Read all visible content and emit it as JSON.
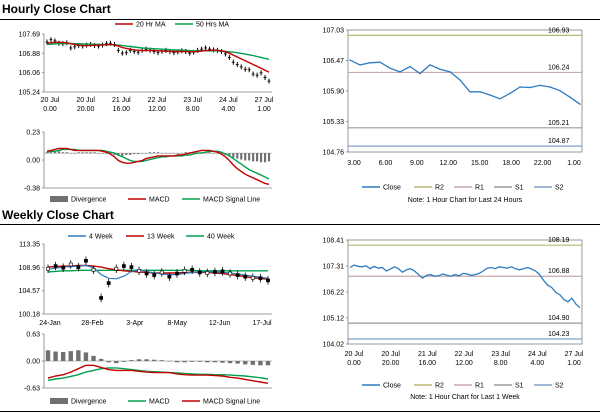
{
  "sections": {
    "hourly_title": "Hourly Close Chart",
    "weekly_title": "Weekly Close Chart"
  },
  "colors": {
    "price": "#000000",
    "ma_short": "#c00000",
    "ma_long": "#00a050",
    "divergence": "#707070",
    "macd": "#c00000",
    "signal": "#00a050",
    "close_line": "#2e7bbf",
    "r2": "#b8b872",
    "r1": "#c9a9a9",
    "s1": "#9a9a9a",
    "s2": "#80a0c8",
    "axis": "#808080"
  },
  "chart_data": [
    {
      "id": "hourly_price",
      "type": "line",
      "title": "",
      "legend": [
        "20 Hr MA",
        "50 Hrs MA"
      ],
      "legend_position": "top",
      "yticks": [
        "107.69",
        "106.88",
        "106.06",
        "105.24"
      ],
      "ylim": [
        105.24,
        107.69
      ],
      "xticks": [
        "20 Jul\n0.00",
        "20 Jul\n20.00",
        "21 Jul\n16.00",
        "22 Jul\n12.00",
        "23 Jul\n8.00",
        "24 Jul\n4.00",
        "27 Jul\n1.00"
      ],
      "series": [
        {
          "name": "Price",
          "values": [
            107.35,
            107.45,
            107.4,
            107.3,
            107.28,
            107.32,
            107.1,
            107.15,
            107.2,
            107.18,
            107.22,
            107.25,
            107.2,
            107.18,
            107.22,
            107.28,
            107.3,
            107.25,
            107.0,
            106.88,
            106.9,
            107.0,
            106.95,
            106.92,
            107.0,
            107.05,
            107.0,
            106.95,
            106.9,
            106.96,
            107.0,
            106.95,
            106.9,
            106.93,
            106.98,
            106.95,
            106.88,
            106.92,
            107.0,
            107.05,
            107.1,
            107.05,
            107.02,
            107.0,
            106.95,
            106.85,
            106.7,
            106.5,
            106.4,
            106.3,
            106.2,
            106.18,
            106.0,
            105.95,
            106.05,
            105.85,
            105.7
          ]
        },
        {
          "name": "20 Hr MA",
          "values": [
            107.3,
            107.32,
            107.34,
            107.34,
            107.33,
            107.32,
            107.28,
            107.25,
            107.22,
            107.2,
            107.2,
            107.21,
            107.22,
            107.22,
            107.22,
            107.24,
            107.25,
            107.22,
            107.18,
            107.12,
            107.08,
            107.05,
            107.02,
            107.0,
            106.99,
            106.99,
            107.0,
            106.99,
            106.98,
            106.97,
            106.96,
            106.96,
            106.95,
            106.95,
            106.95,
            106.95,
            106.94,
            106.94,
            106.95,
            106.97,
            106.99,
            107.0,
            107.01,
            107.0,
            106.98,
            106.94,
            106.88,
            106.8,
            106.72,
            106.64,
            106.56,
            106.48,
            106.4,
            106.32,
            106.24,
            106.16,
            106.08
          ]
        },
        {
          "name": "50 Hrs MA",
          "values": [
            107.25,
            107.26,
            107.27,
            107.28,
            107.28,
            107.29,
            107.29,
            107.28,
            107.28,
            107.27,
            107.27,
            107.26,
            107.26,
            107.25,
            107.25,
            107.24,
            107.24,
            107.23,
            107.22,
            107.2,
            107.18,
            107.16,
            107.14,
            107.12,
            107.1,
            107.09,
            107.08,
            107.07,
            107.06,
            107.05,
            107.04,
            107.03,
            107.02,
            107.02,
            107.01,
            107.0,
            106.99,
            106.98,
            106.98,
            106.98,
            106.98,
            106.98,
            106.98,
            106.98,
            106.97,
            106.96,
            106.94,
            106.92,
            106.9,
            106.87,
            106.84,
            106.81,
            106.78,
            106.74,
            106.7,
            106.66,
            106.62
          ]
        }
      ]
    },
    {
      "id": "hourly_macd",
      "type": "bar",
      "yticks": [
        "0.23",
        "0.00",
        "-0.38"
      ],
      "ylim": [
        -0.38,
        0.23
      ],
      "legend": [
        "Divergence",
        "MACD",
        "MACD Signal Line"
      ],
      "legend_position": "bottom",
      "series": [
        {
          "name": "Divergence",
          "values": [
            0.01,
            0.01,
            0.02,
            0.02,
            0.01,
            0.01,
            0.0,
            0.0,
            0.01,
            0.01,
            0.01,
            0.01,
            0.01,
            0.0,
            0.0,
            0.0,
            -0.01,
            -0.02,
            -0.03,
            -0.03,
            -0.02,
            -0.02,
            -0.01,
            -0.01,
            0.0,
            0.0,
            0.01,
            0.01,
            0.01,
            0.0,
            0.0,
            0.0,
            0.0,
            0.0,
            0.0,
            0.01,
            0.01,
            0.01,
            0.01,
            0.01,
            0.01,
            0.01,
            0.0,
            0.0,
            -0.01,
            -0.02,
            -0.03,
            -0.05,
            -0.06,
            -0.07,
            -0.08,
            -0.08,
            -0.09,
            -0.09,
            -0.1,
            -0.1,
            -0.09
          ]
        },
        {
          "name": "MACD",
          "values": [
            0.02,
            0.03,
            0.04,
            0.05,
            0.05,
            0.05,
            0.04,
            0.03,
            0.03,
            0.03,
            0.03,
            0.03,
            0.03,
            0.03,
            0.02,
            0.01,
            -0.01,
            -0.04,
            -0.08,
            -0.1,
            -0.11,
            -0.11,
            -0.1,
            -0.09,
            -0.08,
            -0.06,
            -0.05,
            -0.04,
            -0.03,
            -0.03,
            -0.03,
            -0.03,
            -0.03,
            -0.02,
            -0.02,
            -0.01,
            0.0,
            0.01,
            0.02,
            0.03,
            0.03,
            0.03,
            0.02,
            0.01,
            -0.01,
            -0.04,
            -0.08,
            -0.13,
            -0.17,
            -0.2,
            -0.23,
            -0.25,
            -0.27,
            -0.29,
            -0.31,
            -0.33,
            -0.34
          ]
        },
        {
          "name": "MACD Signal Line",
          "values": [
            0.01,
            0.02,
            0.02,
            0.03,
            0.04,
            0.04,
            0.04,
            0.04,
            0.03,
            0.03,
            0.03,
            0.03,
            0.03,
            0.03,
            0.03,
            0.02,
            0.01,
            0.0,
            -0.02,
            -0.04,
            -0.06,
            -0.08,
            -0.09,
            -0.09,
            -0.09,
            -0.08,
            -0.07,
            -0.06,
            -0.05,
            -0.04,
            -0.04,
            -0.03,
            -0.03,
            -0.03,
            -0.03,
            -0.02,
            -0.02,
            -0.01,
            0.0,
            0.0,
            0.01,
            0.02,
            0.02,
            0.02,
            0.01,
            -0.01,
            -0.03,
            -0.06,
            -0.09,
            -0.12,
            -0.15,
            -0.18,
            -0.2,
            -0.22,
            -0.24,
            -0.26,
            -0.28
          ]
        }
      ]
    },
    {
      "id": "hourly_close",
      "type": "line",
      "yticks": [
        "107.03",
        "106.47",
        "105.90",
        "105.33",
        "104.76"
      ],
      "ylim": [
        104.76,
        107.03
      ],
      "xticks": [
        "3.00",
        "6.00",
        "9.00",
        "12.00",
        "15.00",
        "18.00",
        "22.00",
        "1.00"
      ],
      "levels": [
        {
          "name": "R2",
          "value": 106.93,
          "label": "106.93"
        },
        {
          "name": "R1",
          "value": 106.24,
          "label": "106.24"
        },
        {
          "name": "S1",
          "value": 105.21,
          "label": "105.21"
        },
        {
          "name": "S2",
          "value": 104.87,
          "label": "104.87"
        }
      ],
      "series": [
        {
          "name": "Close",
          "values": [
            106.47,
            106.38,
            106.42,
            106.43,
            106.32,
            106.25,
            106.35,
            106.22,
            106.38,
            106.3,
            106.25,
            106.1,
            105.88,
            105.88,
            105.82,
            105.75,
            105.85,
            105.97,
            105.96,
            106.0,
            105.97,
            105.9,
            105.78,
            105.65
          ]
        }
      ],
      "legend": [
        "Close",
        "R2",
        "R1",
        "S1",
        "S2"
      ],
      "note": "Note: 1 Hour Chart for Last 24 Hours"
    },
    {
      "id": "weekly_price",
      "type": "line",
      "legend": [
        "4 Week",
        "13 Week",
        "40 Week"
      ],
      "legend_position": "top",
      "yticks": [
        "113.35",
        "108.96",
        "104.57",
        "100.18"
      ],
      "ylim": [
        100.18,
        113.35
      ],
      "xticks": [
        "24-Jan",
        "28-Feb",
        "3-Apr",
        "8-May",
        "12-Jun",
        "17-Jul"
      ],
      "series": [
        {
          "name": "Price",
          "values": [
            108.7,
            109.2,
            108.9,
            109.5,
            109.0,
            110.2,
            108.5,
            103.2,
            106.0,
            108.7,
            109.2,
            109.0,
            108.3,
            107.8,
            107.5,
            108.0,
            107.2,
            107.8,
            108.3,
            108.5,
            108.0,
            107.9,
            108.1,
            108.2,
            107.8,
            107.5,
            107.2,
            107.0,
            106.9,
            106.5
          ]
        },
        {
          "name": "4 Week",
          "values": [
            108.6,
            108.8,
            109.0,
            109.1,
            109.2,
            109.3,
            108.9,
            107.6,
            106.9,
            106.8,
            107.3,
            108.2,
            108.5,
            108.2,
            107.9,
            107.7,
            107.6,
            107.6,
            107.8,
            108.0,
            108.1,
            108.1,
            108.1,
            108.0,
            107.9,
            107.7,
            107.5,
            107.3,
            107.1,
            106.9
          ]
        },
        {
          "name": "13 Week",
          "values": [
            109.0,
            109.1,
            109.2,
            109.2,
            109.3,
            109.3,
            109.2,
            109.0,
            108.7,
            108.5,
            108.3,
            108.2,
            108.1,
            108.0,
            107.9,
            107.9,
            107.9,
            107.9,
            108.0,
            108.0,
            108.0,
            108.0,
            107.9,
            107.8,
            107.6,
            107.4,
            107.2,
            107.0,
            106.9,
            106.7
          ]
        },
        {
          "name": "40 Week",
          "values": [
            108.1,
            108.2,
            108.3,
            108.3,
            108.4,
            108.4,
            108.4,
            108.4,
            108.4,
            108.4,
            108.4,
            108.4,
            108.4,
            108.4,
            108.4,
            108.4,
            108.4,
            108.4,
            108.4,
            108.4,
            108.3,
            108.3,
            108.3,
            108.3,
            108.3,
            108.3,
            108.3,
            108.3,
            108.3,
            108.3
          ]
        }
      ]
    },
    {
      "id": "weekly_macd",
      "type": "bar",
      "yticks": [
        "0.63",
        "0.00",
        "-0.63"
      ],
      "ylim": [
        -0.63,
        0.63
      ],
      "legend": [
        "Divergence",
        "MACD",
        "MACD Signal Line"
      ],
      "legend_position": "bottom",
      "series": [
        {
          "name": "Divergence",
          "values": [
            0.25,
            0.22,
            0.21,
            0.23,
            0.25,
            0.2,
            0.12,
            0.05,
            -0.03,
            -0.05,
            -0.02,
            0.02,
            0.04,
            0.04,
            0.03,
            0.02,
            0.0,
            -0.03,
            -0.03,
            -0.02,
            -0.02,
            -0.03,
            -0.03,
            -0.04,
            -0.05,
            -0.06,
            -0.08,
            -0.09,
            -0.1,
            -0.1
          ]
        },
        {
          "name": "MACD",
          "values": [
            -0.4,
            -0.35,
            -0.32,
            -0.26,
            -0.18,
            -0.1,
            -0.1,
            -0.15,
            -0.2,
            -0.22,
            -0.22,
            -0.22,
            -0.24,
            -0.26,
            -0.27,
            -0.27,
            -0.27,
            -0.3,
            -0.32,
            -0.33,
            -0.33,
            -0.33,
            -0.34,
            -0.35,
            -0.38,
            -0.4,
            -0.43,
            -0.46,
            -0.49,
            -0.52
          ]
        },
        {
          "name": "MACD Signal Line",
          "values": [
            -0.45,
            -0.42,
            -0.4,
            -0.36,
            -0.32,
            -0.26,
            -0.22,
            -0.18,
            -0.16,
            -0.16,
            -0.18,
            -0.2,
            -0.22,
            -0.24,
            -0.25,
            -0.26,
            -0.27,
            -0.28,
            -0.29,
            -0.3,
            -0.31,
            -0.31,
            -0.32,
            -0.32,
            -0.33,
            -0.34,
            -0.35,
            -0.37,
            -0.39,
            -0.42
          ]
        }
      ]
    },
    {
      "id": "weekly_close",
      "type": "line",
      "yticks": [
        "108.41",
        "107.31",
        "106.22",
        "105.12",
        "104.02"
      ],
      "ylim": [
        104.02,
        108.41
      ],
      "xticks": [
        "20 Jul\n0.00",
        "20 Jul\n20.00",
        "21 Jul\n16.00",
        "22 Jul\n12.00",
        "23 Jul\n8.00",
        "24 Jul\n4.00",
        "27 Jul\n1.00"
      ],
      "levels": [
        {
          "name": "R2",
          "value": 108.19,
          "label": "108.19"
        },
        {
          "name": "R1",
          "value": 106.88,
          "label": "106.88"
        },
        {
          "name": "S1",
          "value": 104.9,
          "label": "104.90"
        },
        {
          "name": "S2",
          "value": 104.23,
          "label": "104.23"
        }
      ],
      "series": [
        {
          "name": "Close",
          "values": [
            107.25,
            107.35,
            107.3,
            107.28,
            107.32,
            107.2,
            107.3,
            107.22,
            107.25,
            107.1,
            107.18,
            107.28,
            107.2,
            107.05,
            107.15,
            107.2,
            107.1,
            106.95,
            106.8,
            106.92,
            106.95,
            106.88,
            106.9,
            106.98,
            106.92,
            106.88,
            106.95,
            106.9,
            107.0,
            106.98,
            106.92,
            106.95,
            107.0,
            107.1,
            107.22,
            107.25,
            107.2,
            107.28,
            107.25,
            107.22,
            107.28,
            107.2,
            107.15,
            107.2,
            107.25,
            107.18,
            107.1,
            106.95,
            106.7,
            106.5,
            106.4,
            106.2,
            106.1,
            105.9,
            105.8,
            105.95,
            105.7,
            105.55
          ]
        }
      ],
      "legend": [
        "Close",
        "R2",
        "R1",
        "S1",
        "S2"
      ],
      "note": "Note: 1 Hour Chart for Last 1 Week"
    }
  ]
}
